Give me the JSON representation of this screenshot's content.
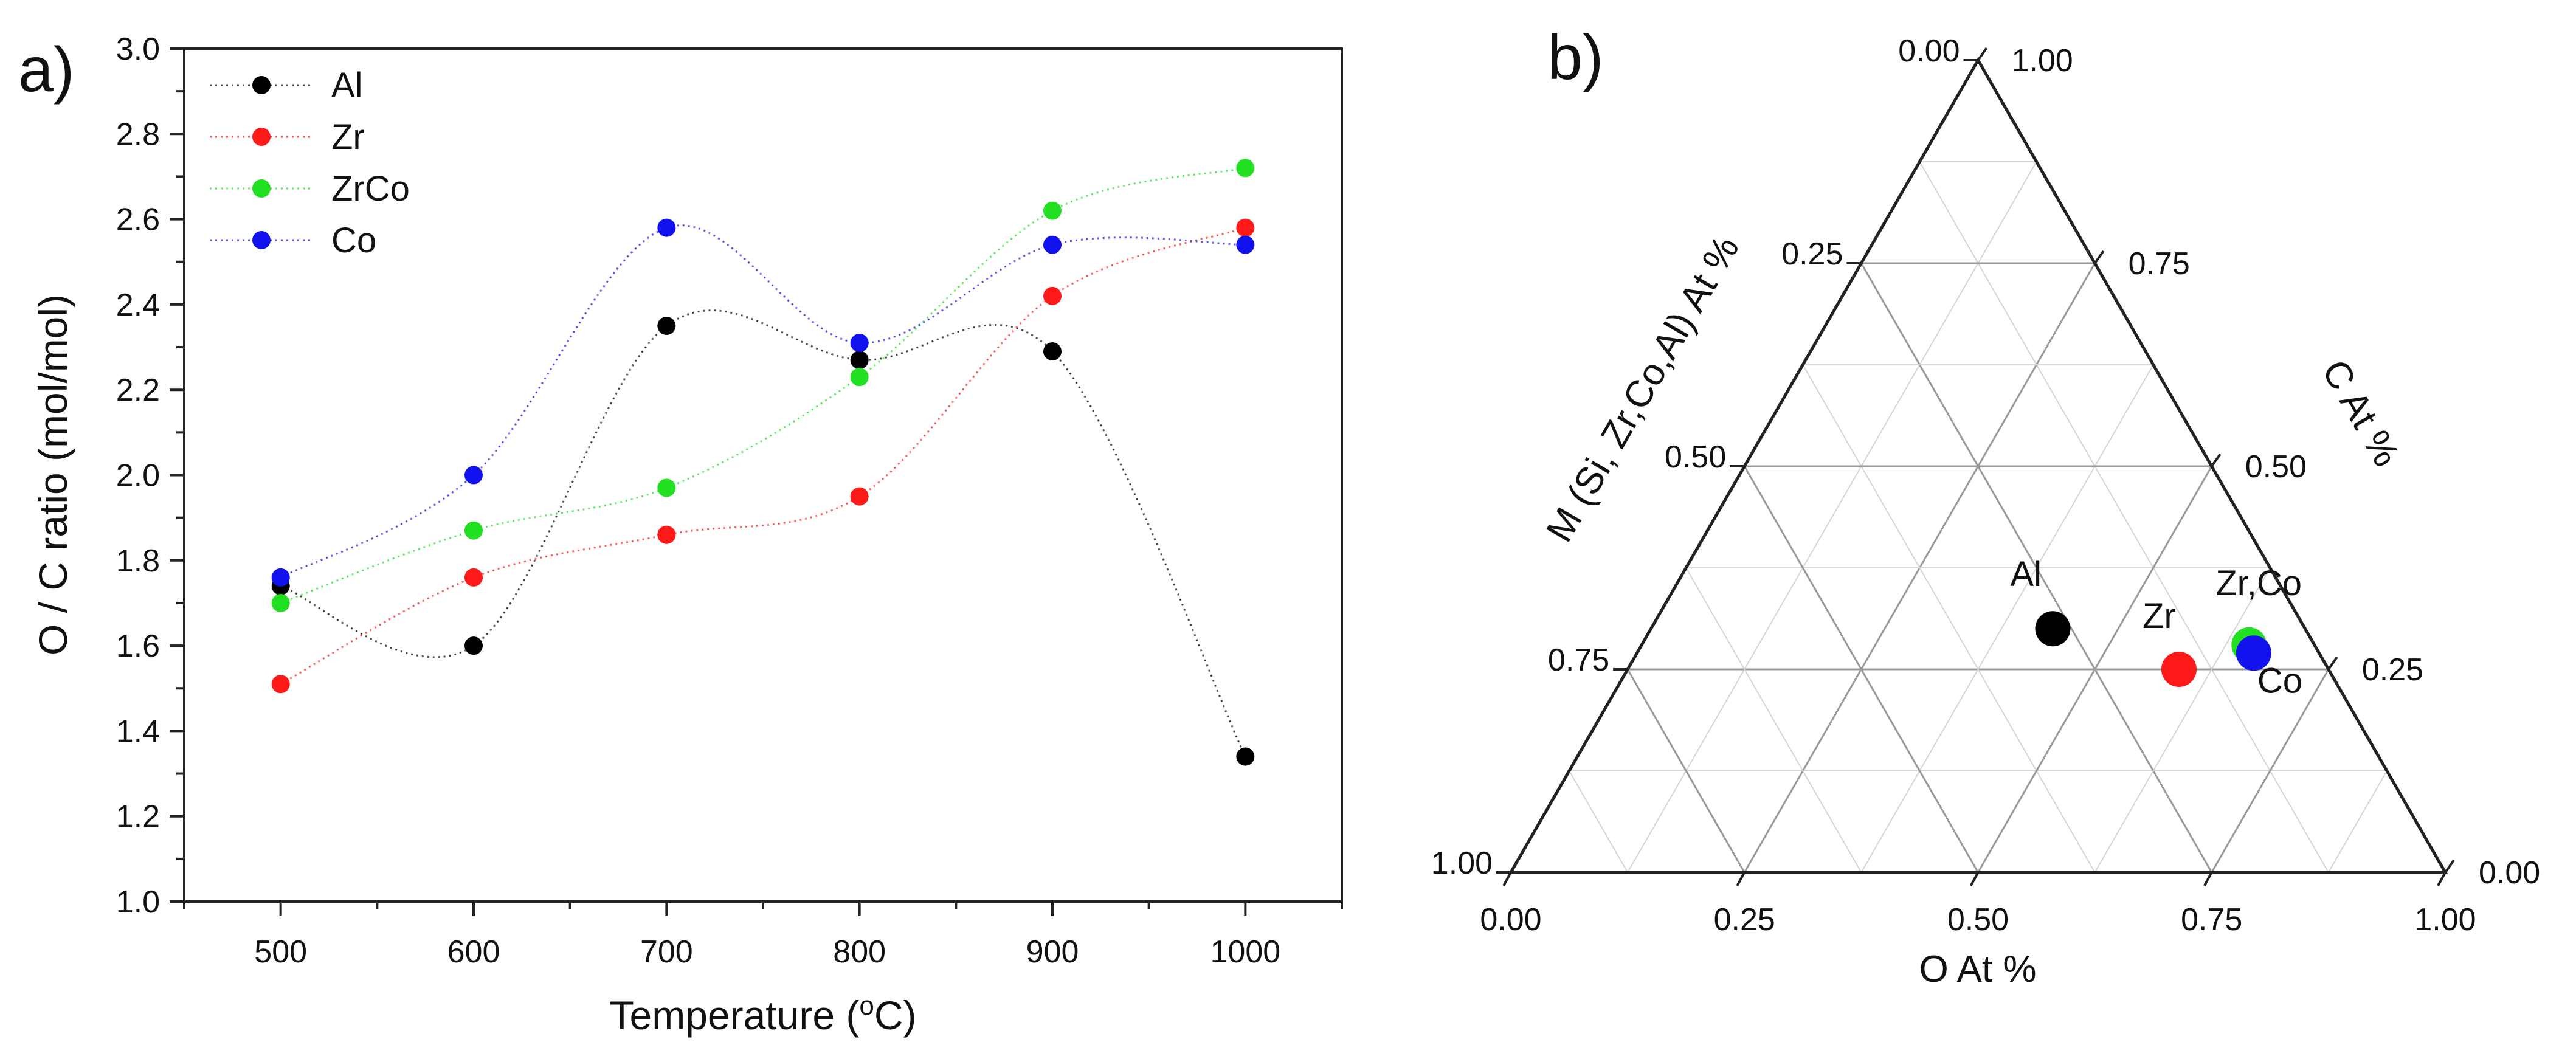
{
  "chart_data": [
    {
      "type": "scatter",
      "panel_label": "a)",
      "title": "",
      "xlabel": "Temperature (",
      "xlabel_sup": "o",
      "xlabel_suffix": "C)",
      "ylabel": "O / C ratio (mol/mol)",
      "xlim": [
        450,
        1050
      ],
      "ylim": [
        1.0,
        3.0
      ],
      "x_ticks": [
        500,
        600,
        700,
        800,
        900,
        1000
      ],
      "x_tick_labels": [
        "500",
        "600",
        "700",
        "800",
        "900",
        "1000"
      ],
      "y_ticks": [
        1.0,
        1.2,
        1.4,
        1.6,
        1.8,
        2.0,
        2.2,
        2.4,
        2.6,
        2.8,
        3.0
      ],
      "y_tick_labels": [
        "1.0",
        "1.2",
        "1.4",
        "1.6",
        "1.8",
        "2.0",
        "2.2",
        "2.4",
        "2.6",
        "2.8",
        "3.0"
      ],
      "legend_position": "top-left",
      "line_style": "dotted spline",
      "x": [
        500,
        600,
        700,
        800,
        900,
        1000
      ],
      "series": [
        {
          "name": "Al",
          "color": "#000000",
          "values": [
            1.74,
            1.6,
            2.35,
            2.27,
            2.29,
            1.34
          ]
        },
        {
          "name": "Zr",
          "color": "#ff1a1a",
          "values": [
            1.51,
            1.76,
            1.86,
            1.95,
            2.42,
            2.58
          ]
        },
        {
          "name": "ZrCo",
          "color": "#21e021",
          "values": [
            1.7,
            1.87,
            1.97,
            2.23,
            2.62,
            2.72
          ]
        },
        {
          "name": "Co",
          "color": "#1212ee",
          "values": [
            1.76,
            2.0,
            2.58,
            2.31,
            2.54,
            2.54
          ]
        }
      ]
    },
    {
      "type": "scatter",
      "subtype": "ternary",
      "panel_label": "b)",
      "title": "",
      "bottom_axis_label": "O At %",
      "left_axis_label": "M (Si, Zr,Co,Al) At %",
      "right_axis_label": "C At %",
      "bottom_tick_labels": [
        "0.00",
        "0.25",
        "0.50",
        "0.75",
        "1.00"
      ],
      "left_tick_labels": [
        "0.00",
        "0.25",
        "0.50",
        "0.75",
        "1.00"
      ],
      "right_tick_labels": [
        "0.00",
        "0.25",
        "0.50",
        "0.75",
        "1.00"
      ],
      "grid": true,
      "points": [
        {
          "name": "Al",
          "label": "Al",
          "color": "#000000",
          "O": 0.43,
          "C": 0.3,
          "M": 0.27
        },
        {
          "name": "Zr",
          "label": "Zr",
          "color": "#ff1a1a",
          "O": 0.59,
          "C": 0.25,
          "M": 0.16
        },
        {
          "name": "ZrCo",
          "label": "Zr,Co",
          "color": "#21e021",
          "O": 0.65,
          "C": 0.28,
          "M": 0.07
        },
        {
          "name": "Co",
          "label": "Co",
          "color": "#1212ee",
          "O": 0.66,
          "C": 0.27,
          "M": 0.07
        }
      ]
    }
  ]
}
